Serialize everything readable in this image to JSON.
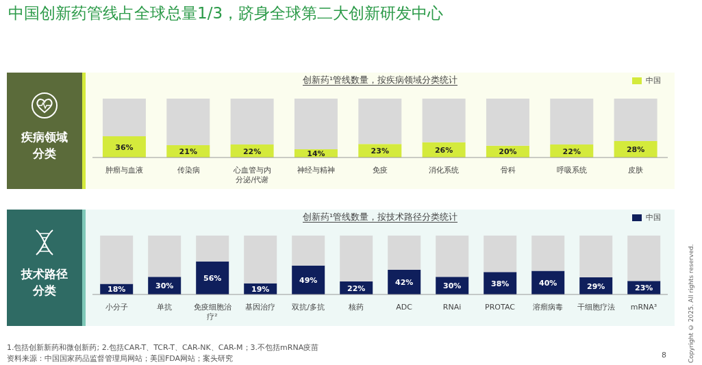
{
  "chart_data": [
    {
      "type": "bar",
      "title": "创新药¹管线数量，按疾病领域分类统计",
      "stacked": true,
      "legend": "top right",
      "tick_labels": "x",
      "categories": [
        "肿瘤与血液",
        "传染病",
        "心血管与内分泌/代谢",
        "神经与精神",
        "免疫",
        "消化系统",
        "骨科",
        "呼吸系统",
        "皮肤"
      ],
      "series": [
        {
          "name": "中国",
          "color": "#d4ea3c",
          "values": [
            36,
            21,
            22,
            14,
            23,
            26,
            20,
            22,
            28
          ],
          "value_labels": [
            "36%",
            "21%",
            "22%",
            "14%",
            "23%",
            "26%",
            "20%",
            "22%",
            "28%"
          ]
        },
        {
          "color": "#d9d9d9",
          "values": [
            64,
            79,
            78,
            86,
            77,
            74,
            80,
            78,
            72
          ]
        }
      ],
      "annotations": [
        "中国创新药管线占全球总量1/3，跻身全球第二大创新研发中心",
        "疾病领域分类"
      ]
    },
    {
      "type": "bar",
      "title": "创新药¹管线数量，按技术路径分类统计",
      "stacked": true,
      "legend": "top right",
      "tick_labels": "x",
      "categories": [
        "小分子",
        "单抗",
        "免疫细胞治疗²",
        "基因治疗",
        "双抗/多抗",
        "核药",
        "ADC",
        "RNAi",
        "PROTAC",
        "溶瘤病毒",
        "干细胞疗法",
        "mRNA³"
      ],
      "series": [
        {
          "name": "中国",
          "color": "#0f1f5c",
          "values": [
            18,
            30,
            56,
            19,
            49,
            22,
            42,
            30,
            38,
            40,
            29,
            23
          ],
          "value_labels": [
            "18%",
            "30%",
            "56%",
            "19%",
            "49%",
            "22%",
            "42%",
            "30%",
            "38%",
            "40%",
            "29%",
            "23%"
          ]
        },
        {
          "color": "#d9d9d9",
          "values": [
            82,
            70,
            44,
            81,
            51,
            78,
            58,
            70,
            62,
            60,
            71,
            77
          ]
        }
      ],
      "annotations": [
        "技术路径分类",
        "1.包括创新新药和微创新药; 2.包括CAR-T、TCR-T、CAR-NK、CAR-M；3.不包括mRNA疫苗",
        "资料来源：中国国家药品监督管理局网站；美国FDA网站；案头研究",
        "Copyright © 2025. All rights reserved.",
        "8"
      ]
    }
  ]
}
